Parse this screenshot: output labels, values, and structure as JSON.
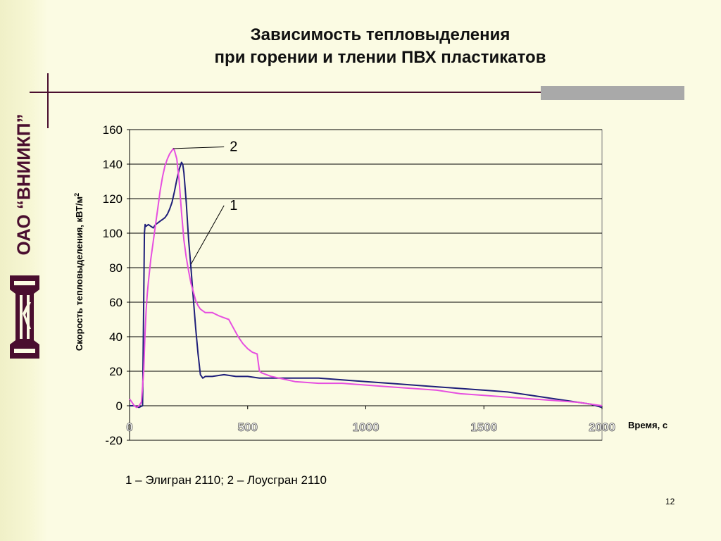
{
  "sidebar": {
    "org_name": "ОАО “ВНИИКП”",
    "logo_icon": "vniikp-logo-icon",
    "logo_color": "#4a0e2f"
  },
  "title": {
    "line1": "Зависимость тепловыделения",
    "line2": "при горении и тлении ПВХ пластикатов"
  },
  "caption": "1 – Элигран 2110; 2 – Лоусгран 2110",
  "page_number": "12",
  "colors": {
    "background": "#fbfbe3",
    "accent": "#4a0e2f",
    "series_1": "#1f1f7a",
    "series_2": "#e64fe0"
  },
  "chart_data": {
    "type": "line",
    "title": "",
    "xlabel": "Время, с",
    "ylabel_text": "Скорость тепловыделения, кВТ/м",
    "ylabel_sup": "2",
    "xlim": [
      0,
      2000
    ],
    "ylim": [
      -20,
      160
    ],
    "xticks": [
      0,
      500,
      1000,
      1500,
      2000
    ],
    "yticks": [
      -20,
      0,
      20,
      40,
      60,
      80,
      100,
      120,
      140,
      160
    ],
    "grid": true,
    "series": [
      {
        "name": "1",
        "color": "#1f1f7a",
        "x": [
          0,
          20,
          40,
          55,
          60,
          63,
          66,
          70,
          80,
          90,
          100,
          110,
          120,
          130,
          140,
          150,
          160,
          170,
          180,
          190,
          200,
          210,
          220,
          225,
          230,
          240,
          250,
          260,
          270,
          280,
          290,
          300,
          310,
          320,
          350,
          400,
          450,
          500,
          550,
          600,
          700,
          800,
          900,
          1000,
          1100,
          1200,
          1300,
          1400,
          1500,
          1600,
          1700,
          1800,
          1900,
          1950,
          2000
        ],
        "y": [
          0,
          0,
          -1,
          0,
          60,
          100,
          105,
          104,
          105,
          104,
          103,
          105,
          106,
          107,
          108,
          109,
          111,
          114,
          118,
          124,
          131,
          137,
          141,
          140,
          135,
          118,
          96,
          80,
          62,
          45,
          30,
          18,
          16,
          17,
          17,
          18,
          17,
          17,
          16,
          16,
          16,
          16,
          15,
          14,
          13,
          12,
          11,
          10,
          9,
          8,
          6,
          4,
          2,
          1,
          -1
        ]
      },
      {
        "name": "2",
        "color": "#e64fe0",
        "x": [
          0,
          10,
          20,
          30,
          40,
          50,
          60,
          65,
          70,
          75,
          80,
          90,
          100,
          110,
          120,
          130,
          140,
          150,
          160,
          170,
          180,
          185,
          190,
          200,
          210,
          220,
          230,
          240,
          250,
          260,
          270,
          280,
          290,
          300,
          320,
          350,
          380,
          400,
          420,
          440,
          460,
          480,
          500,
          520,
          540,
          545,
          550,
          560,
          600,
          700,
          800,
          900,
          1000,
          1100,
          1200,
          1300,
          1400,
          1500,
          1600,
          1700,
          1800,
          1900,
          2000
        ],
        "y": [
          4,
          2,
          0,
          -1,
          0,
          2,
          20,
          40,
          55,
          65,
          72,
          85,
          95,
          105,
          115,
          125,
          133,
          139,
          143,
          146,
          148,
          149,
          148,
          143,
          130,
          112,
          96,
          86,
          78,
          71,
          66,
          61,
          58,
          56,
          54,
          54,
          52,
          51,
          50,
          45,
          40,
          36,
          33,
          31,
          30,
          25,
          20,
          19,
          17,
          14,
          13,
          13,
          12,
          11,
          10,
          9,
          7,
          6,
          5,
          4,
          3,
          2,
          0
        ]
      }
    ],
    "annotations": [
      {
        "text": "2",
        "series": "2"
      },
      {
        "text": "1",
        "series": "1"
      }
    ]
  }
}
